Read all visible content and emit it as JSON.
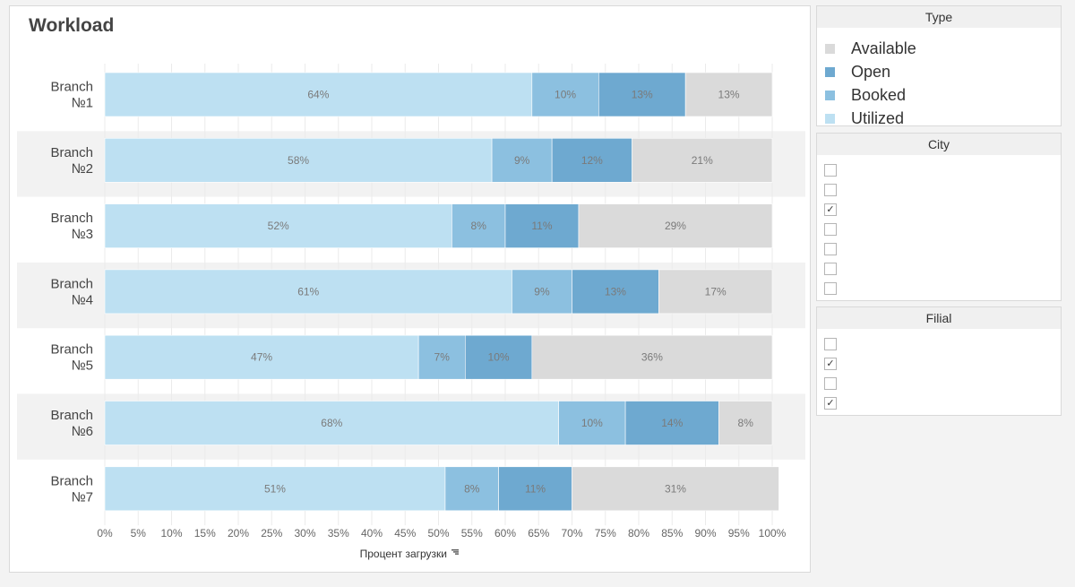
{
  "chart_data": {
    "type": "bar",
    "orientation": "horizontal",
    "stacked": true,
    "title": "Workload",
    "categories": [
      "Branch №1",
      "Branch №2",
      "Branch №3",
      "Branch №4",
      "Branch №5",
      "Branch №6",
      "Branch №7"
    ],
    "series": [
      {
        "name": "Utilized",
        "color": "#bde0f2",
        "values": [
          64,
          58,
          52,
          61,
          47,
          68,
          51
        ]
      },
      {
        "name": "Booked",
        "color": "#8cc0e0",
        "values": [
          10,
          9,
          8,
          9,
          7,
          10,
          8
        ]
      },
      {
        "name": "Open",
        "color": "#6ea9d0",
        "values": [
          13,
          12,
          11,
          13,
          10,
          14,
          11
        ]
      },
      {
        "name": "Available",
        "color": "#dadada",
        "values": [
          13,
          21,
          29,
          17,
          36,
          8,
          31
        ]
      }
    ],
    "xlabel": "Процент загрузки",
    "ylabel": "",
    "xlim": [
      0,
      100
    ],
    "x_ticks": [
      "0%",
      "5%",
      "10%",
      "15%",
      "20%",
      "25%",
      "30%",
      "35%",
      "40%",
      "45%",
      "50%",
      "55%",
      "60%",
      "65%",
      "70%",
      "75%",
      "80%",
      "85%",
      "90%",
      "95%",
      "100%"
    ],
    "value_suffix": "%",
    "grid": true
  },
  "legend": {
    "title": "Type",
    "items": [
      {
        "label": "Available",
        "color": "#dadada"
      },
      {
        "label": "Open",
        "color": "#6ea9d0"
      },
      {
        "label": "Booked",
        "color": "#8cc0e0"
      },
      {
        "label": "Utilized",
        "color": "#bde0f2"
      }
    ]
  },
  "city_filter": {
    "title": "City",
    "items": [
      {
        "checked": false
      },
      {
        "checked": false
      },
      {
        "checked": true
      },
      {
        "checked": false
      },
      {
        "checked": false
      },
      {
        "checked": false
      },
      {
        "checked": false
      }
    ]
  },
  "filial_filter": {
    "title": "Filial",
    "items": [
      {
        "checked": false
      },
      {
        "checked": true
      },
      {
        "checked": false
      },
      {
        "checked": true
      }
    ]
  },
  "icons": {
    "sort": "sort-icon",
    "check": "check-icon"
  }
}
